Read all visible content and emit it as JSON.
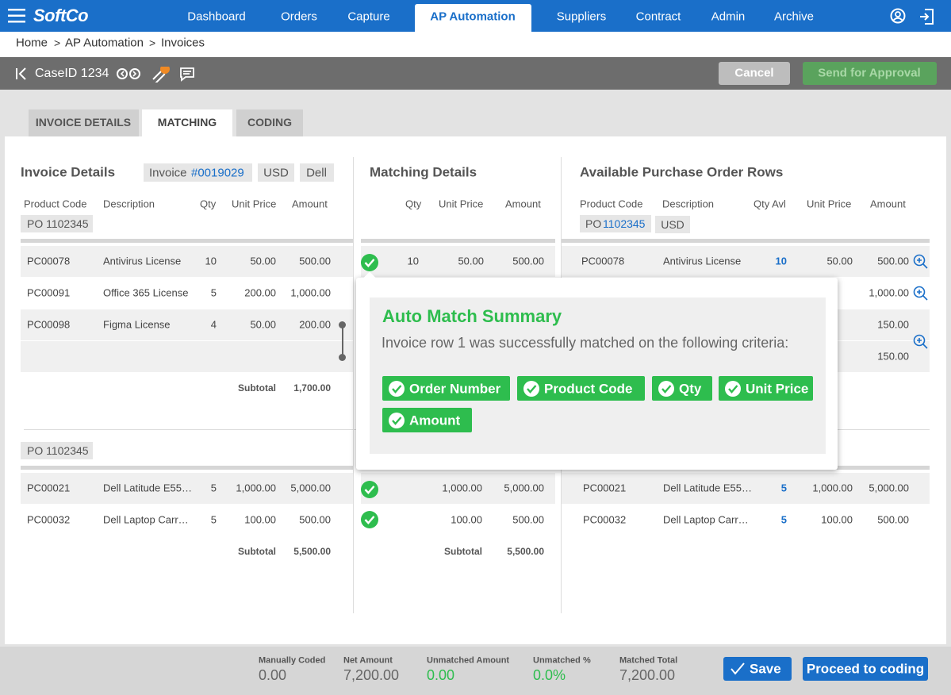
{
  "nav": {
    "brand": "SoftCo",
    "items": [
      "Dashboard",
      "Orders",
      "Capture",
      "AP Automation",
      "Suppliers",
      "Contract",
      "Admin",
      "Archive"
    ]
  },
  "breadcrumb": {
    "items": [
      "Home",
      "AP Automation",
      "Invoices"
    ],
    "separator": ">"
  },
  "toolbar": {
    "case_id": "CaseID 1234",
    "cancel": "Cancel",
    "send": "Send for Approval"
  },
  "tabs": [
    "INVOICE DETAILS",
    "MATCHING",
    "CODING"
  ],
  "invoice": {
    "title": "Invoice Details",
    "invoice_label": "Invoice",
    "invoice_number": "#0019029",
    "currency": "USD",
    "supplier": "Dell",
    "columns": [
      "Product Code",
      "Description",
      "Qty",
      "Unit Price",
      "Amount"
    ],
    "groups": [
      {
        "po": "PO 1102345",
        "rows": [
          [
            "PC00078",
            "Antivirus License",
            "10",
            "50.00",
            "500.00"
          ],
          [
            "PC00091",
            "Office 365 License",
            "5",
            "200.00",
            "1,000.00"
          ],
          [
            "PC00098",
            "Figma License",
            "4",
            "50.00",
            "200.00"
          ]
        ],
        "subtotal_label": "Subtotal",
        "subtotal": "1,700.00"
      },
      {
        "po": "PO 1102345",
        "rows": [
          [
            "PC00021",
            "Dell Latitude E55…",
            "5",
            "1,000.00",
            "5,000.00"
          ],
          [
            "PC00032",
            "Dell Laptop Carr…",
            "5",
            "100.00",
            "500.00"
          ]
        ],
        "subtotal_label": "Subtotal",
        "subtotal": "5,500.00"
      }
    ]
  },
  "matching": {
    "title": "Matching Details",
    "columns": [
      "Qty",
      "Unit Price",
      "Amount"
    ],
    "group1_row": {
      "qty": "10",
      "unit_price": "50.00",
      "amount": "500.00"
    },
    "group2_rows": [
      {
        "unit_price": "1,000.00",
        "amount": "5,000.00"
      },
      {
        "unit_price": "100.00",
        "amount": "500.00"
      }
    ],
    "subtotal_label": "Subtotal",
    "subtotal": "5,500.00"
  },
  "po_rows": {
    "title": "Available Purchase Order Rows",
    "po_label": "PO",
    "po_number": "1102345",
    "currency": "USD",
    "columns": [
      "Product Code",
      "Description",
      "Qty Avl",
      "Unit Price",
      "Amount"
    ],
    "group1_first": [
      "PC00078",
      "Antivirus License",
      "10",
      "50.00",
      "500.00"
    ],
    "group1_amounts": [
      "1,000.00",
      "150.00",
      "150.00"
    ],
    "group2_rows": [
      [
        "PC00021",
        "Dell Latitude E55…",
        "5",
        "1,000.00",
        "5,000.00"
      ],
      [
        "PC00032",
        "Dell Laptop Carr…",
        "5",
        "100.00",
        "500.00"
      ]
    ]
  },
  "popup": {
    "title": "Auto Match Summary",
    "text": "Invoice row 1 was successfully matched on the following criteria:",
    "criteria": [
      "Order Number",
      "Product Code",
      "Qty",
      "Unit Price",
      "Amount"
    ]
  },
  "footer": {
    "stats": [
      {
        "label": "Manually Coded",
        "value": "0.00"
      },
      {
        "label": "Net Amount",
        "value": "7,200.00"
      },
      {
        "label": "Unmatched Amount",
        "value": "0.00"
      },
      {
        "label": "Unmatched %",
        "value": "0.0%"
      },
      {
        "label": "Matched Total",
        "value": "7,200.00"
      }
    ],
    "save": "Save",
    "proceed": "Proceed to coding"
  }
}
